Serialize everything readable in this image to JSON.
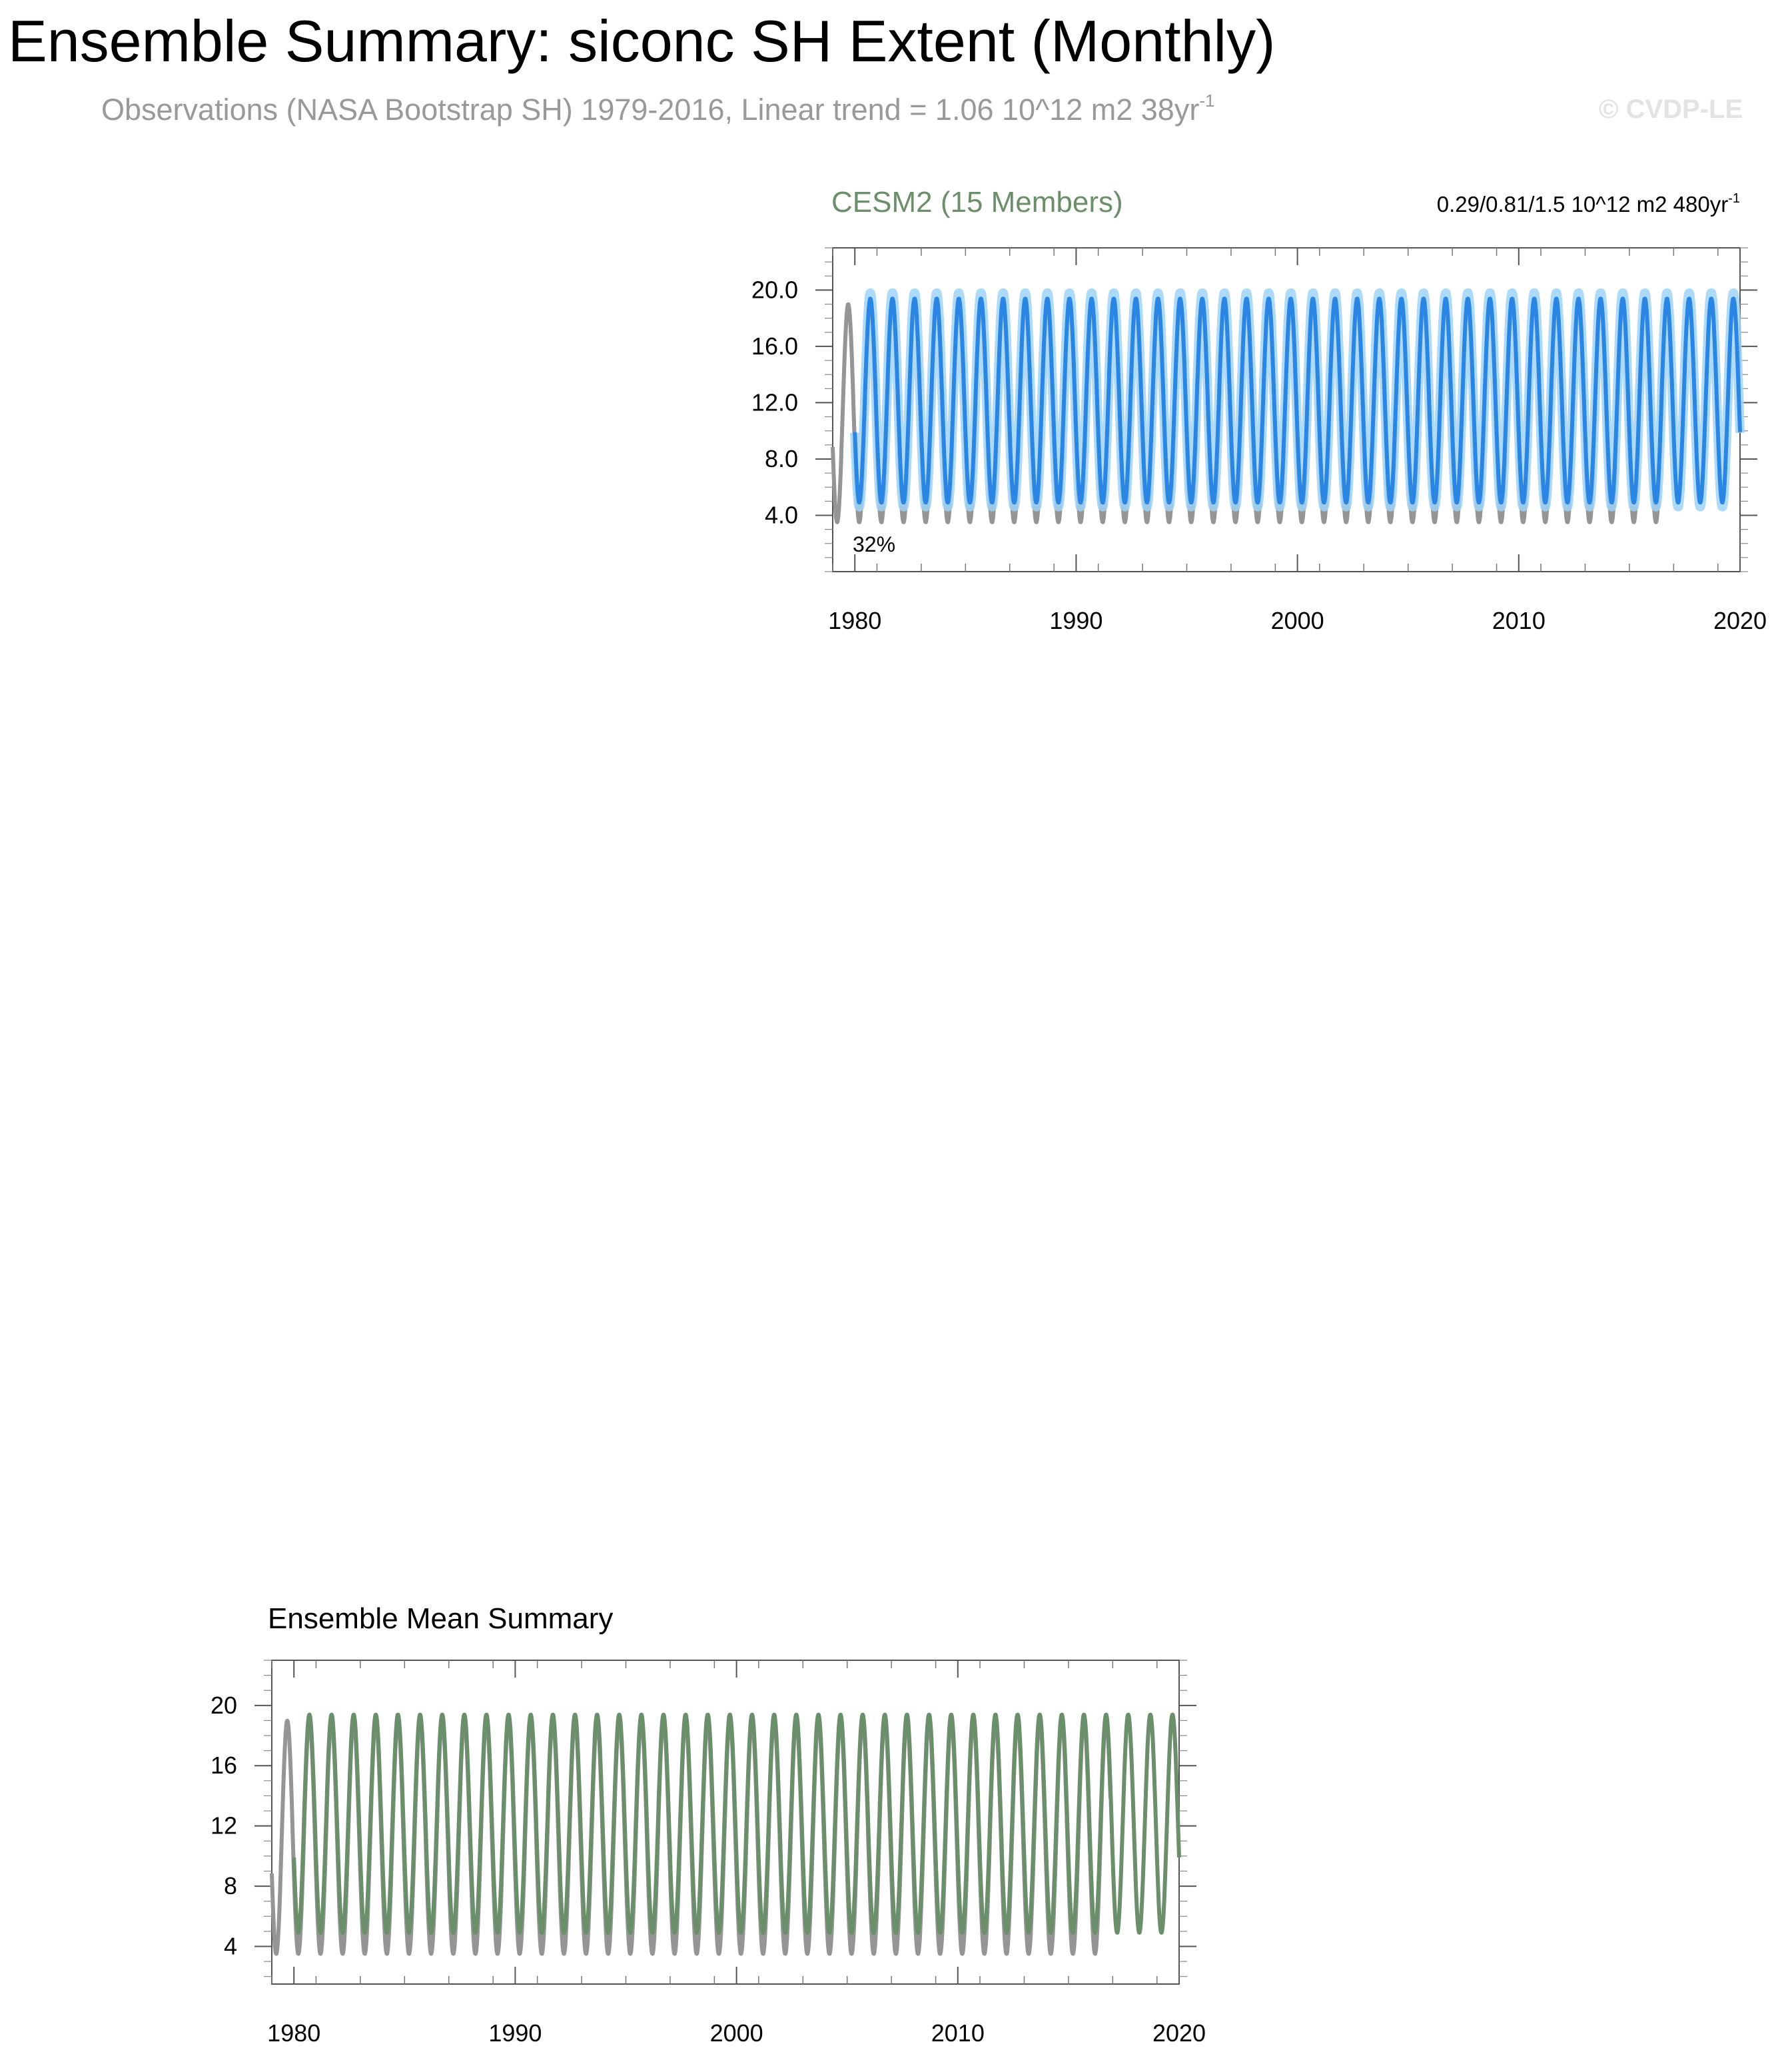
{
  "header": {
    "title": "Ensemble Summary: siconc SH Extent (Monthly)",
    "subtitle": "Observations (NASA Bootstrap SH) 1979-2016, Linear trend = 1.06 10^12 m2 38yr",
    "subtitle_superscript": "-1",
    "watermark": "© CVDP-LE"
  },
  "colors": {
    "observations": "#959595",
    "ensemble_spread": "#9fd3f7",
    "cesm2_mean": "#2b86e3",
    "ensemble_mean": "#6b8e6b",
    "panel_title": "#6b8e6b"
  },
  "chart_data": [
    {
      "type": "line",
      "title": "CESM2 (15 Members)",
      "trend_label": "0.29/0.81/1.5 10^12 m2 480yr",
      "trend_superscript": "-1",
      "annotation": "32%",
      "xlim": [
        1979.0,
        2020.0
      ],
      "ylim": [
        0,
        23
      ],
      "xticks": [
        1980,
        1990,
        2000,
        2010,
        2020
      ],
      "xtick_labels": [
        "1980",
        "1990",
        "2000",
        "2010",
        "2020"
      ],
      "yticks": [
        4,
        8,
        12,
        16,
        20
      ],
      "ytick_labels": [
        "4.0",
        "8.0",
        "12.0",
        "16.0",
        "20.0"
      ],
      "series": [
        {
          "role": "observations",
          "start": 1979.0,
          "end": 2016.9,
          "max": 19.0,
          "min": 3.5
        },
        {
          "role": "ensemble_spread",
          "start": 1980.0,
          "end": 2020.0,
          "max": 19.8,
          "min": 4.6
        },
        {
          "role": "model_mean",
          "start": 1980.0,
          "end": 2020.0,
          "max": 19.4,
          "min": 4.9
        }
      ],
      "grid": false
    },
    {
      "type": "line",
      "title": "Ensemble Mean Summary",
      "xlim": [
        1979.0,
        2020.0
      ],
      "ylim": [
        1.5,
        23
      ],
      "xticks": [
        1980,
        1990,
        2000,
        2010,
        2020
      ],
      "xtick_labels": [
        "1980",
        "1990",
        "2000",
        "2010",
        "2020"
      ],
      "yticks": [
        4,
        8,
        12,
        16,
        20
      ],
      "ytick_labels": [
        "4",
        "8",
        "12",
        "16",
        "20"
      ],
      "series": [
        {
          "role": "observations",
          "start": 1979.0,
          "end": 2016.9,
          "max": 19.0,
          "min": 3.5
        },
        {
          "role": "model_mean",
          "start": 1980.0,
          "end": 2020.0,
          "max": 19.4,
          "min": 4.9
        }
      ],
      "grid": false
    }
  ]
}
